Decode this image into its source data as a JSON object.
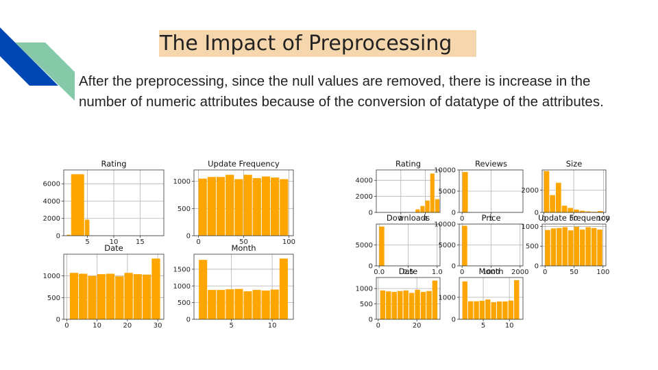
{
  "slide": {
    "title": "The Impact of Preprocessing",
    "body": " After the preprocessing, since the null values are removed, there is increase in the number of numeric attributes because of the conversion of datatype of the attributes.",
    "colors": {
      "accent_blue": "#0047b3",
      "accent_green": "#86c9a8",
      "title_bg": "#f6d7ad",
      "bar": "#ffa500"
    }
  },
  "chart_data": [
    {
      "type": "bar",
      "title": "Rating",
      "xlim": [
        0.5,
        19.5
      ],
      "ylim": [
        0,
        7600
      ],
      "xticks": [
        5,
        10,
        15
      ],
      "xtick_labels": [
        "5",
        "10",
        "15"
      ],
      "yticks": [
        0,
        2000,
        4000,
        6000
      ],
      "ytick_labels": [
        "0",
        "2000",
        "4000",
        "6000"
      ],
      "bins": [
        [
          1.1,
          1.9,
          120
        ],
        [
          1.9,
          4.5,
          7100
        ],
        [
          4.5,
          5.5,
          1850
        ]
      ]
    },
    {
      "type": "bar",
      "title": "Update Frequency",
      "xlim": [
        -5,
        105
      ],
      "ylim": [
        0,
        1210
      ],
      "xticks": [
        0,
        50,
        100
      ],
      "xtick_labels": [
        "0",
        "50",
        "100"
      ],
      "yticks": [
        0,
        500,
        1000
      ],
      "ytick_labels": [
        "0",
        "500",
        "1000"
      ],
      "bins": [
        [
          0,
          10,
          1050
        ],
        [
          10,
          20,
          1080
        ],
        [
          20,
          30,
          1080
        ],
        [
          30,
          40,
          1120
        ],
        [
          40,
          50,
          1040
        ],
        [
          50,
          60,
          1120
        ],
        [
          60,
          70,
          1060
        ],
        [
          70,
          80,
          1090
        ],
        [
          80,
          90,
          1070
        ],
        [
          90,
          100,
          1040
        ]
      ]
    },
    {
      "type": "bar",
      "title": "Date",
      "xlim": [
        -1,
        32
      ],
      "ylim": [
        0,
        1500
      ],
      "xticks": [
        0,
        10,
        20,
        30
      ],
      "xtick_labels": [
        "0",
        "10",
        "20",
        "30"
      ],
      "yticks": [
        0,
        500,
        1000
      ],
      "ytick_labels": [
        "0",
        "500",
        "1000"
      ],
      "bins": [
        [
          1,
          4,
          1070
        ],
        [
          4,
          7,
          1050
        ],
        [
          7,
          10,
          1000
        ],
        [
          10,
          13,
          1040
        ],
        [
          13,
          16,
          1050
        ],
        [
          16,
          19,
          990
        ],
        [
          19,
          22,
          1070
        ],
        [
          22,
          25,
          1040
        ],
        [
          25,
          28,
          1030
        ],
        [
          28,
          31,
          1400
        ]
      ]
    },
    {
      "type": "bar",
      "title": "Month",
      "xlim": [
        0.4,
        12.6
      ],
      "ylim": [
        0,
        1950
      ],
      "xticks": [
        5,
        10
      ],
      "xtick_labels": [
        "5",
        "10"
      ],
      "yticks": [
        0,
        500,
        1000,
        1500
      ],
      "ytick_labels": [
        "0",
        "500",
        "1000",
        "1500"
      ],
      "bins": [
        [
          1,
          2.1,
          1780
        ],
        [
          2.1,
          3.2,
          880
        ],
        [
          3.2,
          4.3,
          880
        ],
        [
          4.3,
          5.4,
          900
        ],
        [
          5.4,
          6.5,
          910
        ],
        [
          6.5,
          7.6,
          840
        ],
        [
          7.6,
          8.7,
          880
        ],
        [
          8.7,
          9.8,
          860
        ],
        [
          9.8,
          10.9,
          890
        ],
        [
          10.9,
          12,
          1820
        ]
      ]
    },
    {
      "type": "bar",
      "title": "Rating",
      "xlim": [
        0,
        5.2
      ],
      "ylim": [
        0,
        5300
      ],
      "xticks": [
        2,
        4
      ],
      "xtick_labels": [
        "2",
        "4"
      ],
      "yticks": [
        0,
        2000,
        4000
      ],
      "ytick_labels": [
        "0",
        "2000",
        "4000"
      ],
      "bins": [
        [
          3.2,
          3.6,
          380
        ],
        [
          3.6,
          4.0,
          800
        ],
        [
          4.0,
          4.4,
          1480
        ],
        [
          4.4,
          4.8,
          4850
        ],
        [
          4.8,
          5.2,
          1650
        ]
      ]
    },
    {
      "type": "bar",
      "title": "Reviews",
      "xlim": [
        -0.5,
        10.5
      ],
      "ylim": [
        0,
        10000
      ],
      "xticks": [
        0,
        5
      ],
      "xtick_labels": [
        "0",
        "5"
      ],
      "yticks": [
        0,
        5000,
        10000
      ],
      "ytick_labels": [
        "0",
        "5000",
        "10000"
      ],
      "bins": [
        [
          0.05,
          1.1,
          9500
        ]
      ]
    },
    {
      "type": "bar",
      "title": "Size",
      "xlim": [
        -3,
        104
      ],
      "ylim": [
        0,
        3800
      ],
      "xticks": [
        0,
        50,
        100
      ],
      "xtick_labels": [
        "0",
        "50",
        "100"
      ],
      "yticks": [
        0,
        2000
      ],
      "ytick_labels": [
        "0",
        "2000"
      ],
      "bins": [
        [
          0,
          10,
          3700
        ],
        [
          10,
          20,
          1550
        ],
        [
          20,
          30,
          2650
        ],
        [
          30,
          40,
          600
        ],
        [
          40,
          50,
          400
        ],
        [
          50,
          60,
          250
        ],
        [
          60,
          70,
          150
        ],
        [
          70,
          80,
          90
        ],
        [
          80,
          90,
          60
        ],
        [
          90,
          100,
          120
        ]
      ]
    },
    {
      "type": "bar",
      "title": "Downloads",
      "xlim": [
        -0.05,
        1.05
      ],
      "ylim": [
        0,
        10000
      ],
      "xticks": [
        0,
        0.5,
        1.0
      ],
      "xtick_labels": [
        "0.0",
        "0.5",
        "1.0"
      ],
      "yticks": [
        0,
        5000
      ],
      "ytick_labels": [
        "0",
        "5000"
      ],
      "bins": [
        [
          0,
          0.1,
          9400
        ]
      ]
    },
    {
      "type": "bar",
      "title": "Price",
      "xlim": [
        -100,
        2100
      ],
      "ylim": [
        0,
        10000
      ],
      "xticks": [
        0,
        1000,
        2000
      ],
      "xtick_labels": [
        "0",
        "1000",
        "2000"
      ],
      "yticks": [
        0,
        5000,
        10000
      ],
      "ytick_labels": [
        "0",
        "5000",
        "10000"
      ],
      "bins": [
        [
          0,
          200,
          9600
        ]
      ]
    },
    {
      "type": "bar",
      "title": "Update Frequency",
      "xlim": [
        -5,
        105
      ],
      "ylim": [
        0,
        1060
      ],
      "xticks": [
        0,
        50,
        100
      ],
      "xtick_labels": [
        "0",
        "50",
        "100"
      ],
      "yticks": [
        0,
        500,
        1000
      ],
      "ytick_labels": [
        "0",
        "500",
        "1000"
      ],
      "bins": [
        [
          0,
          10,
          910
        ],
        [
          10,
          20,
          950
        ],
        [
          20,
          30,
          960
        ],
        [
          30,
          40,
          980
        ],
        [
          40,
          50,
          900
        ],
        [
          50,
          60,
          990
        ],
        [
          60,
          70,
          920
        ],
        [
          70,
          80,
          980
        ],
        [
          80,
          90,
          960
        ],
        [
          90,
          100,
          920
        ]
      ]
    },
    {
      "type": "bar",
      "title": "Date",
      "xlim": [
        -1,
        32
      ],
      "ylim": [
        0,
        1360
      ],
      "xticks": [
        0,
        20
      ],
      "xtick_labels": [
        "0",
        "20"
      ],
      "yticks": [
        0,
        500,
        1000
      ],
      "ytick_labels": [
        "0",
        "500",
        "1000"
      ],
      "bins": [
        [
          1,
          4,
          940
        ],
        [
          4,
          7,
          910
        ],
        [
          7,
          10,
          890
        ],
        [
          10,
          13,
          920
        ],
        [
          13,
          16,
          940
        ],
        [
          16,
          19,
          860
        ],
        [
          19,
          22,
          960
        ],
        [
          22,
          25,
          890
        ],
        [
          25,
          28,
          920
        ],
        [
          28,
          31,
          1260
        ]
      ]
    },
    {
      "type": "bar",
      "title": "Month",
      "xlim": [
        0.4,
        12.6
      ],
      "ylim": [
        0,
        1900
      ],
      "xticks": [
        5,
        10
      ],
      "xtick_labels": [
        "5",
        "10"
      ],
      "yticks": [
        0,
        1000
      ],
      "ytick_labels": [
        "0",
        "1000"
      ],
      "bins": [
        [
          1,
          2.1,
          1720
        ],
        [
          2.1,
          3.2,
          820
        ],
        [
          3.2,
          4.3,
          820
        ],
        [
          4.3,
          5.4,
          840
        ],
        [
          5.4,
          6.5,
          900
        ],
        [
          6.5,
          7.6,
          780
        ],
        [
          7.6,
          8.7,
          810
        ],
        [
          8.7,
          9.8,
          810
        ],
        [
          9.8,
          10.9,
          850
        ],
        [
          10.9,
          12,
          1780
        ]
      ]
    }
  ]
}
